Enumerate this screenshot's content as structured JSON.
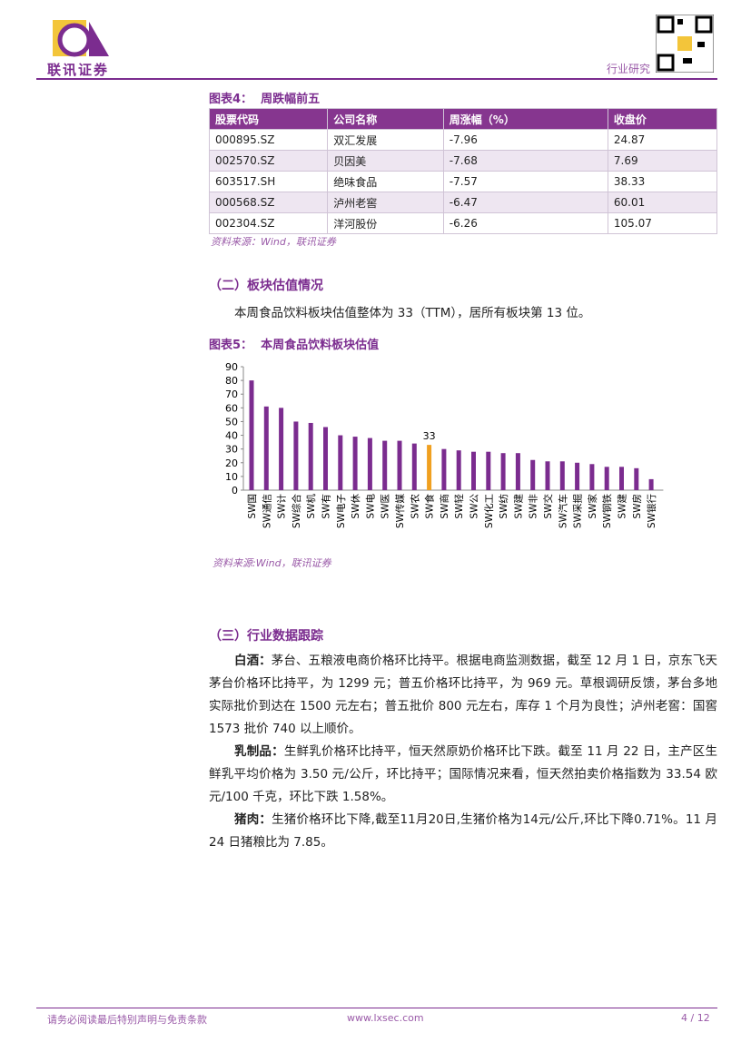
{
  "header": {
    "brand": "联讯证券",
    "category": "行业研究"
  },
  "figure4": {
    "caption_label": "图表4：",
    "caption": "周跌幅前五",
    "columns": [
      "股票代码",
      "公司名称",
      "周涨幅（%）",
      "收盘价"
    ],
    "rows": [
      [
        "000895.SZ",
        "双汇发展",
        "-7.96",
        "24.87"
      ],
      [
        "002570.SZ",
        "贝因美",
        "-7.68",
        "7.69"
      ],
      [
        "603517.SH",
        "绝味食品",
        "-7.57",
        "38.33"
      ],
      [
        "000568.SZ",
        "泸州老窖",
        "-6.47",
        "60.01"
      ],
      [
        "002304.SZ",
        "洋河股份",
        "-6.26",
        "105.07"
      ]
    ],
    "source": "资料来源：Wind，联讯证券"
  },
  "section2": {
    "heading": "（二）板块估值情况",
    "paragraph": "本周食品饮料板块估值整体为 33（TTM），居所有板块第 13 位。"
  },
  "figure5": {
    "caption_label": "图表5：",
    "caption": "本周食品饮料板块估值",
    "source": "资料来源:Wind，联讯证券"
  },
  "chart_data": {
    "type": "bar",
    "categories": [
      "SW国",
      "SW通信",
      "SW计",
      "SW综合",
      "SW机",
      "SW有",
      "SW电子",
      "SW休",
      "SW电",
      "SW医",
      "SW传媒",
      "SW农",
      "SW食",
      "SW商",
      "SW轻",
      "SW公",
      "SW化工",
      "SW纺",
      "SW建",
      "SW非",
      "SW交",
      "SW汽车",
      "SW采掘",
      "SW家",
      "SW钢铁",
      "SW建",
      "SW房",
      "SW银行"
    ],
    "values": [
      80,
      61,
      60,
      50,
      49,
      46,
      40,
      39,
      38,
      36,
      36,
      34,
      33,
      30,
      29,
      28,
      28,
      27,
      27,
      22,
      21,
      21,
      20,
      19,
      17,
      17,
      16,
      8
    ],
    "color": "#7b2c8f",
    "highlight_index": 12,
    "highlight_color": "#f0a020",
    "ylim": [
      0,
      90
    ],
    "yticks": [
      0,
      10,
      20,
      30,
      40,
      50,
      60,
      70,
      80,
      90
    ]
  },
  "section3": {
    "heading": "（三）行业数据跟踪",
    "paragraphs": [
      {
        "lead": "白酒：",
        "text": "茅台、五粮液电商价格环比持平。根据电商监测数据，截至 12 月 1 日，京东飞天茅台价格环比持平，为 1299 元；普五价格环比持平，为 969 元。草根调研反馈，茅台多地实际批价到达在 1500 元左右；普五批价 800 元左右，库存 1 个月为良性；泸州老窖：国窖 1573 批价 740 以上顺价。"
      },
      {
        "lead": "乳制品：",
        "text": "生鲜乳价格环比持平，恒天然原奶价格环比下跌。截至 11 月 22 日，主产区生鲜乳平均价格为 3.50 元/公斤，环比持平；国际情况来看，恒天然拍卖价格指数为 33.54 欧元/100 千克，环比下跌 1.58%。"
      },
      {
        "lead": "猪肉：",
        "text": "生猪价格环比下降,截至11月20日,生猪价格为14元/公斤,环比下降0.71%。11 月 24 日猪粮比为 7.85。"
      }
    ]
  },
  "footer": {
    "disclaimer": "请务必阅读最后特别声明与免责条款",
    "website": "www.lxsec.com",
    "page": "4 / 12"
  }
}
